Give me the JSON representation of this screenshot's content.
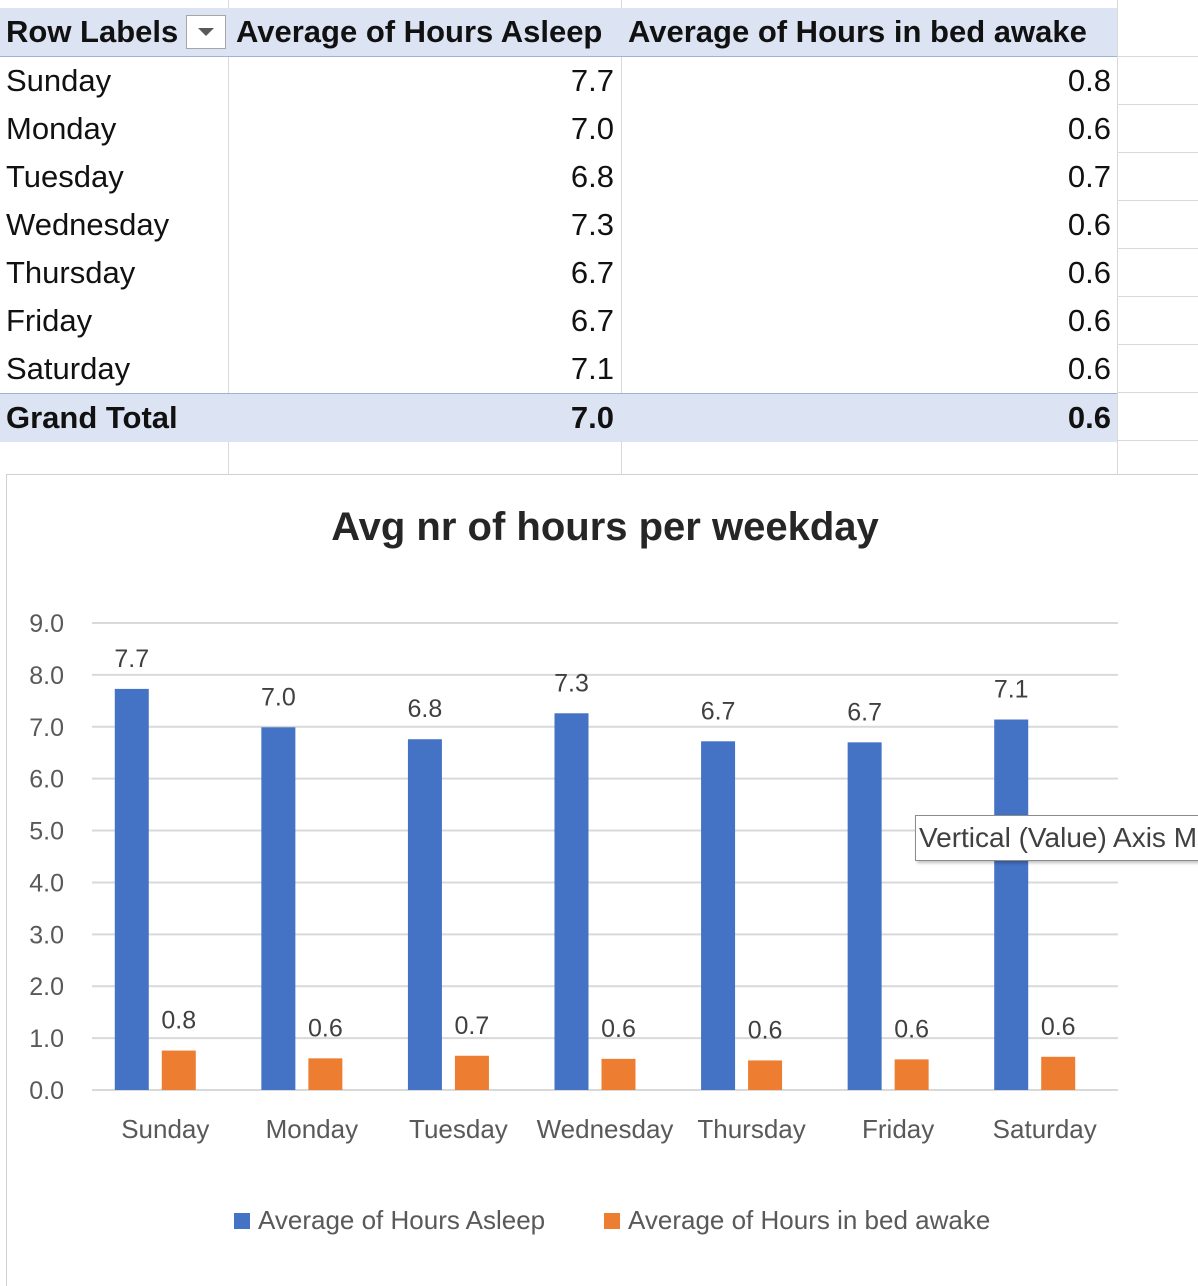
{
  "pivot_table": {
    "headers": {
      "row_labels": "Row Labels",
      "col_asleep": "Average of Hours Asleep",
      "col_awake": "Average of Hours in bed awake"
    },
    "rows": [
      {
        "label": "Sunday",
        "asleep": "7.7",
        "awake": "0.8"
      },
      {
        "label": "Monday",
        "asleep": "7.0",
        "awake": "0.6"
      },
      {
        "label": "Tuesday",
        "asleep": "6.8",
        "awake": "0.7"
      },
      {
        "label": "Wednesday",
        "asleep": "7.3",
        "awake": "0.6"
      },
      {
        "label": "Thursday",
        "asleep": "6.7",
        "awake": "0.6"
      },
      {
        "label": "Friday",
        "asleep": "6.7",
        "awake": "0.6"
      },
      {
        "label": "Saturday",
        "asleep": "7.1",
        "awake": "0.6"
      }
    ],
    "total": {
      "label": "Grand Total",
      "asleep": "7.0",
      "awake": "0.6"
    }
  },
  "tooltip": "Vertical (Value) Axis M",
  "colors": {
    "asleep": "#4472c4",
    "awake": "#ed7d31",
    "gridline": "#d9d9d9",
    "axis_text": "#595959",
    "label_text": "#404040"
  },
  "chart_data": {
    "type": "bar",
    "title": "Avg nr of hours per weekday",
    "categories": [
      "Sunday",
      "Monday",
      "Tuesday",
      "Wednesday",
      "Thursday",
      "Friday",
      "Saturday"
    ],
    "series": [
      {
        "name": "Average of Hours Asleep",
        "values": [
          7.73,
          6.99,
          6.76,
          7.26,
          6.72,
          6.7,
          7.14
        ],
        "labels": [
          "7.7",
          "7.0",
          "6.8",
          "7.3",
          "6.7",
          "6.7",
          "7.1"
        ]
      },
      {
        "name": "Average of Hours in bed awake",
        "values": [
          0.76,
          0.61,
          0.66,
          0.6,
          0.57,
          0.59,
          0.64
        ],
        "labels": [
          "0.8",
          "0.6",
          "0.7",
          "0.6",
          "0.6",
          "0.6",
          "0.6"
        ]
      }
    ],
    "ylim": [
      0,
      9
    ],
    "yticks": [
      "0.0",
      "1.0",
      "2.0",
      "3.0",
      "4.0",
      "5.0",
      "6.0",
      "7.0",
      "8.0",
      "9.0"
    ],
    "grid": true,
    "legend": "bottom"
  }
}
